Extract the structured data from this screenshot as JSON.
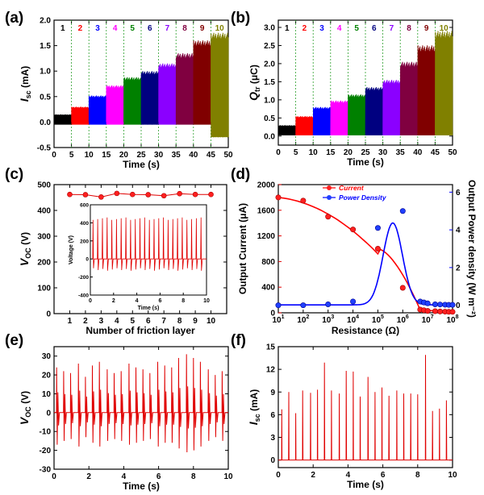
{
  "panels": [
    {
      "id": "a",
      "label": "(a)",
      "chart_data": {
        "type": "line",
        "title": "",
        "xlabel": "Time (s)",
        "ylabel": "I_sc (mA)",
        "xlim": [
          0,
          50
        ],
        "ylim": [
          -0.5,
          2.0
        ],
        "xticks": [
          0,
          5,
          10,
          15,
          20,
          25,
          30,
          35,
          40,
          45,
          50
        ],
        "yticks": [
          -0.5,
          0.0,
          0.5,
          1.0,
          1.5,
          2.0
        ],
        "segment_labels": [
          "1",
          "2",
          "3",
          "4",
          "5",
          "6",
          "7",
          "8",
          "9",
          "10"
        ],
        "segment_colors": [
          "#000000",
          "#ff0000",
          "#0000ff",
          "#ff00ff",
          "#008000",
          "#000080",
          "#8b00ff",
          "#800040",
          "#800000",
          "#808000"
        ],
        "segment_peak_values": [
          0.15,
          0.3,
          0.52,
          0.72,
          0.88,
          1.0,
          1.15,
          1.35,
          1.6,
          1.75
        ],
        "segment_min_values": [
          -0.05,
          -0.05,
          -0.05,
          -0.05,
          -0.05,
          -0.05,
          -0.05,
          -0.05,
          -0.05,
          -0.3
        ]
      }
    },
    {
      "id": "b",
      "label": "(b)",
      "chart_data": {
        "type": "line",
        "title": "",
        "xlabel": "Time (s)",
        "ylabel": "Q_tr (μC)",
        "xlim": [
          0,
          50
        ],
        "ylim": [
          -0.25,
          3.2
        ],
        "xticks": [
          0,
          5,
          10,
          15,
          20,
          25,
          30,
          35,
          40,
          45,
          50
        ],
        "yticks": [
          0.0,
          0.5,
          1.0,
          1.5,
          2.0,
          2.5,
          3.0
        ],
        "segment_labels": [
          "1",
          "2",
          "3",
          "4",
          "5",
          "6",
          "7",
          "8",
          "9",
          "10"
        ],
        "segment_colors": [
          "#000000",
          "#ff0000",
          "#0000ff",
          "#ff00ff",
          "#008000",
          "#000080",
          "#8b00ff",
          "#800040",
          "#800000",
          "#808000"
        ],
        "segment_peak_values": [
          0.3,
          0.55,
          0.8,
          0.98,
          1.15,
          1.35,
          1.55,
          2.05,
          2.5,
          2.9
        ]
      }
    },
    {
      "id": "c",
      "label": "(c)",
      "chart_data": {
        "type": "scatter",
        "title": "",
        "xlabel": "Number of friction layer",
        "ylabel": "V_OC (V)",
        "xlim": [
          0,
          11
        ],
        "ylim": [
          0,
          500
        ],
        "xticks": [
          1,
          2,
          3,
          4,
          5,
          6,
          7,
          8,
          9,
          10
        ],
        "yticks": [
          0,
          100,
          200,
          300,
          400,
          500
        ],
        "x": [
          1,
          2,
          3,
          4,
          5,
          6,
          7,
          8,
          9,
          10
        ],
        "values": [
          462,
          461,
          452,
          466,
          462,
          461,
          457,
          465,
          462,
          462
        ],
        "inset": {
          "type": "line",
          "xlabel": "Time (s)",
          "ylabel": "Voltage (V)",
          "xlim": [
            0,
            10
          ],
          "ylim": [
            -400,
            600
          ],
          "xticks": [
            0,
            2,
            4,
            6,
            8,
            10
          ],
          "yticks": [
            -400,
            -200,
            0,
            200,
            400,
            600
          ],
          "peak_count": 24,
          "peak_value": 460,
          "trough_value": -130
        }
      }
    },
    {
      "id": "d",
      "label": "(d)",
      "chart_data": {
        "type": "scatter",
        "title": "",
        "xlabel": "Resistance (Ω)",
        "ylabel": "Output Current (μA)",
        "y2label": "Output Power density (W m⁻²)",
        "xscale": "log",
        "xlim_exp": [
          1,
          8
        ],
        "ylim": [
          0,
          2000
        ],
        "y2lim": [
          -0.4,
          6.4
        ],
        "xticks_exp": [
          1,
          2,
          3,
          4,
          5,
          6,
          7,
          8
        ],
        "yticks": [
          0,
          400,
          800,
          1200,
          1600,
          2000
        ],
        "y2ticks": [
          0,
          2,
          4,
          6
        ],
        "legend": [
          "Current",
          "Power Density"
        ],
        "legend_position": "top",
        "series": [
          {
            "name": "Current",
            "color": "#ff0000",
            "x_exp": [
              1,
              2,
              3,
              4,
              5,
              6,
              6.7,
              6.85,
              7,
              7.3,
              7.5,
              7.7,
              7.85,
              8
            ],
            "values": [
              1800,
              1750,
              1500,
              1300,
              1000,
              390,
              50,
              40,
              30,
              25,
              20,
              18,
              15,
              15
            ]
          },
          {
            "name": "Power Density",
            "color": "#0000ff",
            "x_exp": [
              1,
              2,
              3,
              4,
              5,
              5.7,
              6,
              6.7,
              6.85,
              7,
              7.3,
              7.5,
              7.7,
              7.85,
              8
            ],
            "values": [
              0.0,
              0.0,
              0.05,
              0.2,
              4.1,
              0,
              5.0,
              0.2,
              0.15,
              0.1,
              0.05,
              0.04,
              0.03,
              0.02,
              0.02
            ]
          }
        ]
      }
    },
    {
      "id": "e",
      "label": "(e)",
      "chart_data": {
        "type": "line",
        "title": "",
        "xlabel": "Time (s)",
        "ylabel": "V_OC (V)",
        "xlim": [
          0,
          10
        ],
        "ylim": [
          -30,
          35
        ],
        "xticks": [
          0,
          2,
          4,
          6,
          8,
          10
        ],
        "yticks": [
          -30,
          -20,
          -10,
          0,
          10,
          20,
          30
        ],
        "peak_times": [
          0.15,
          0.55,
          0.95,
          1.4,
          1.8,
          2.2,
          2.6,
          3.05,
          3.45,
          3.85,
          4.3,
          4.7,
          5.1,
          5.5,
          5.95,
          6.35,
          6.75,
          7.15,
          7.6,
          8.0,
          8.4,
          8.85,
          9.25,
          9.65
        ],
        "peak_values": [
          24,
          22,
          21,
          26,
          19,
          25,
          27,
          23,
          21,
          22,
          26,
          24,
          23,
          21,
          27,
          25,
          24,
          29,
          31,
          29,
          27,
          23,
          20,
          22
        ],
        "trough_values": [
          -17,
          -15,
          -14,
          -18,
          -13,
          -16,
          -18,
          -15,
          -14,
          -15,
          -17,
          -16,
          -15,
          -14,
          -18,
          -16,
          -16,
          -19,
          -21,
          -20,
          -18,
          -15,
          -13,
          -15
        ]
      }
    },
    {
      "id": "f",
      "label": "(f)",
      "chart_data": {
        "type": "line",
        "title": "",
        "xlabel": "Time (s)",
        "ylabel": "I_sc (mA)",
        "xlim": [
          0,
          10
        ],
        "ylim": [
          -1,
          15
        ],
        "xticks": [
          0,
          2,
          4,
          6,
          8,
          10
        ],
        "yticks": [
          0,
          3,
          6,
          9,
          12,
          15
        ],
        "peak_times": [
          0.2,
          0.6,
          1.0,
          1.4,
          1.85,
          2.25,
          2.65,
          3.05,
          3.5,
          3.9,
          4.3,
          4.7,
          5.15,
          5.55,
          5.95,
          6.35,
          6.8,
          7.2,
          7.6,
          8.0,
          8.45,
          8.85,
          9.25,
          9.65
        ],
        "peak_values": [
          6.7,
          9.0,
          6.2,
          9.2,
          8.9,
          9.3,
          12.9,
          9.2,
          8.8,
          11.8,
          11.7,
          8.4,
          11.0,
          9.0,
          9.6,
          8.5,
          9.2,
          8.8,
          8.8,
          8.7,
          13.9,
          6.5,
          6.8,
          7.9
        ]
      }
    }
  ]
}
